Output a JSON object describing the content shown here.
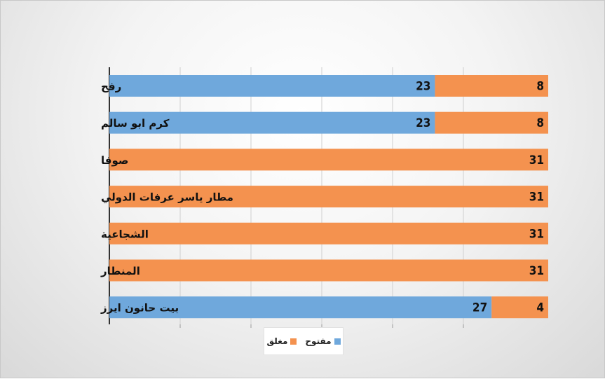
{
  "chart_data": {
    "type": "bar",
    "orientation": "horizontal",
    "stacked": true,
    "categories": [
      "رفح",
      "كرم ابو سالم",
      "صوفا",
      "مطار ياسر عرفات الدولي",
      "الشجاعية",
      "المنطار",
      "بيت حانون ايرز"
    ],
    "series": [
      {
        "name": "مفتوح",
        "color": "#6FA8DC",
        "values": [
          23,
          23,
          0,
          0,
          0,
          0,
          27
        ]
      },
      {
        "name": "مغلق",
        "color": "#F4924F",
        "values": [
          8,
          8,
          31,
          31,
          31,
          31,
          4
        ]
      }
    ],
    "xlim": [
      0,
      31
    ],
    "grid": true,
    "legend_position": "bottom"
  }
}
